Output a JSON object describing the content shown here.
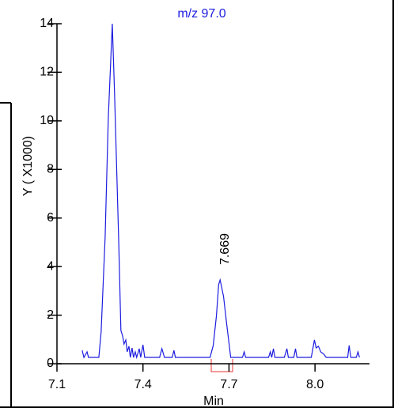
{
  "chart_data": {
    "type": "line",
    "title": "m/z  97.0",
    "y_label": "Y ( X1000)",
    "x_label": "Min",
    "annotation": "7.669",
    "xlim": [
      7.1,
      8.19
    ],
    "ylim": [
      0,
      14
    ],
    "xticks": [
      {
        "value": 7.1,
        "label": "7.1"
      },
      {
        "value": 7.4,
        "label": "7.4"
      },
      {
        "value": 7.7,
        "label": "7.7"
      },
      {
        "value": 8.0,
        "label": "8.0"
      }
    ],
    "yticks": [
      0,
      2,
      4,
      6,
      8,
      10,
      12,
      14
    ],
    "series": [
      {
        "name": "m/z 97.0",
        "color": "#1c1ce0",
        "x": [
          7.188,
          7.194,
          7.205,
          7.21,
          7.246,
          7.254,
          7.268,
          7.279,
          7.293,
          7.301,
          7.315,
          7.323,
          7.329,
          7.334,
          7.34,
          7.345,
          7.351,
          7.356,
          7.362,
          7.367,
          7.373,
          7.378,
          7.387,
          7.392,
          7.4,
          7.406,
          7.458,
          7.466,
          7.475,
          7.502,
          7.508,
          7.513,
          7.634,
          7.645,
          7.656,
          7.664,
          7.669,
          7.681,
          7.692,
          7.706,
          7.747,
          7.753,
          7.758,
          7.838,
          7.844,
          7.849,
          7.855,
          7.86,
          7.893,
          7.902,
          7.907,
          7.926,
          7.932,
          7.937,
          7.987,
          7.993,
          7.998,
          8.004,
          8.012,
          8.02,
          8.031,
          8.039,
          8.114,
          8.119,
          8.125,
          8.144,
          8.15,
          8.155
        ],
        "values": [
          0.55,
          0.26,
          0.49,
          0.26,
          0.26,
          1.3,
          5.21,
          10.1,
          14.0,
          11.07,
          5.21,
          1.37,
          1.14,
          0.81,
          0.98,
          0.49,
          0.72,
          0.26,
          0.65,
          0.26,
          0.49,
          0.26,
          0.62,
          0.26,
          0.78,
          0.26,
          0.26,
          0.62,
          0.26,
          0.26,
          0.55,
          0.26,
          0.26,
          0.75,
          1.95,
          3.26,
          3.45,
          2.77,
          1.63,
          0.26,
          0.26,
          0.49,
          0.26,
          0.26,
          0.49,
          0.26,
          0.62,
          0.26,
          0.26,
          0.62,
          0.26,
          0.26,
          0.62,
          0.26,
          0.26,
          0.65,
          0.98,
          0.65,
          0.72,
          0.49,
          0.39,
          0.26,
          0.26,
          0.75,
          0.26,
          0.26,
          0.49,
          0.26
        ]
      }
    ]
  }
}
